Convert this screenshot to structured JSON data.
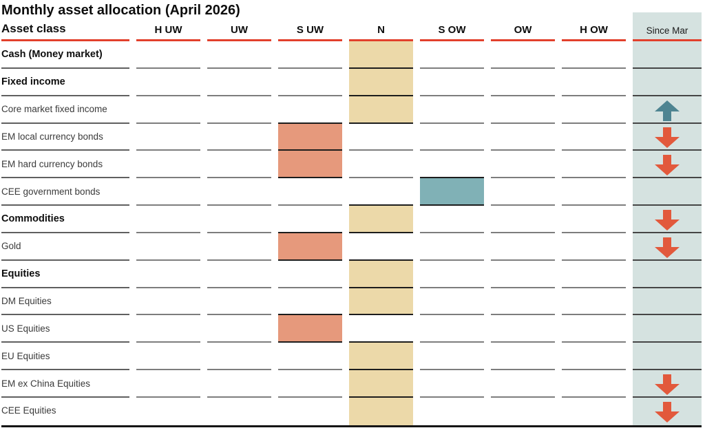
{
  "chart_data": {
    "type": "table",
    "title": "Monthly asset allocation (April 2026)",
    "columns": {
      "asset_class": "Asset class",
      "ratings": [
        "H UW",
        "UW",
        "S UW",
        "N",
        "S OW",
        "OW",
        "H OW"
      ],
      "since": "Since Mar"
    },
    "rows": [
      {
        "label": "Cash (Money market)",
        "bold": true,
        "allocation": "N",
        "since_mar": ""
      },
      {
        "label": "Fixed income",
        "bold": true,
        "allocation": "N",
        "since_mar": ""
      },
      {
        "label": "Core market fixed income",
        "bold": false,
        "allocation": "N",
        "since_mar": "up"
      },
      {
        "label": "EM local currency bonds",
        "bold": false,
        "allocation": "S UW",
        "since_mar": "down"
      },
      {
        "label": "EM hard currency bonds",
        "bold": false,
        "allocation": "S UW",
        "since_mar": "down"
      },
      {
        "label": "CEE government bonds",
        "bold": false,
        "allocation": "S OW",
        "since_mar": ""
      },
      {
        "label": "Commodities",
        "bold": true,
        "allocation": "N",
        "since_mar": "down"
      },
      {
        "label": "Gold",
        "bold": false,
        "allocation": "S UW",
        "since_mar": "down"
      },
      {
        "label": "Equities",
        "bold": true,
        "allocation": "N",
        "since_mar": ""
      },
      {
        "label": "DM Equities",
        "bold": false,
        "allocation": "N",
        "since_mar": ""
      },
      {
        "label": "US Equities",
        "bold": false,
        "allocation": "S UW",
        "since_mar": ""
      },
      {
        "label": "EU Equities",
        "bold": false,
        "allocation": "N",
        "since_mar": ""
      },
      {
        "label": "EM ex China Equities",
        "bold": false,
        "allocation": "N",
        "since_mar": "down"
      },
      {
        "label": "CEE Equities",
        "bold": false,
        "allocation": "N",
        "since_mar": "down"
      }
    ]
  },
  "colors": {
    "header_rule_red": "#e2402c",
    "allocation_colors": {
      "S UW": "#e6997c",
      "N": "#ecd9a9",
      "S OW": "#80b1b6"
    },
    "since_column_bg": "#d5e2e0",
    "arrow_up": "#4e8491",
    "arrow_down": "#e2593c"
  }
}
